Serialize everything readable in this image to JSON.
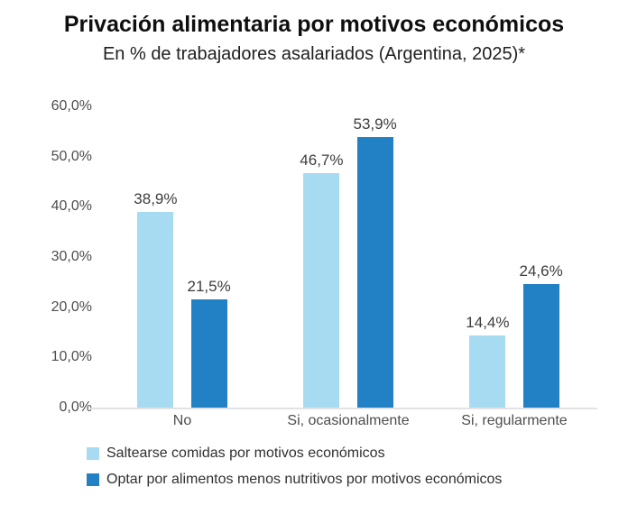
{
  "title": "Privación alimentaria por motivos económicos",
  "subtitle": "En % de trabajadores asalariados (Argentina, 2025)*",
  "colors": {
    "series_light": "#A7DBF2",
    "series_dark": "#2280C4",
    "baseline": "#e3e3e3",
    "title_text": "#0f0f0f",
    "axis_text": "#4d4d4d",
    "value_text": "#3d3d3d"
  },
  "chart_data": {
    "type": "bar",
    "categories": [
      "No",
      "Si, ocasionalmente",
      "Si, regularmente"
    ],
    "series": [
      {
        "name": "Saltearse comidas por motivos económicos",
        "color": "#A7DBF2",
        "values": [
          38.9,
          46.7,
          14.4
        ],
        "labels": [
          "38,9%",
          "46,7%",
          "14,4%"
        ]
      },
      {
        "name": "Optar por alimentos menos nutritivos por motivos económicos",
        "color": "#2280C4",
        "values": [
          21.5,
          53.9,
          24.6
        ],
        "labels": [
          "21,5%",
          "53,9%",
          "24,6%"
        ]
      }
    ],
    "title": "Privación alimentaria por motivos económicos",
    "subtitle": "En % de trabajadores asalariados (Argentina, 2025)*",
    "xlabel": "",
    "ylabel": "",
    "ylim": [
      0,
      60
    ],
    "y_ticks": [
      {
        "value": 60,
        "label": "60,0%"
      },
      {
        "value": 50,
        "label": "50,0%"
      },
      {
        "value": 40,
        "label": "40,0%"
      },
      {
        "value": 30,
        "label": "30,0%"
      },
      {
        "value": 20,
        "label": "20,0%"
      },
      {
        "value": 10,
        "label": "10,0%"
      },
      {
        "value": 0,
        "label": "0,0%"
      }
    ],
    "grid": false,
    "legend_position": "bottom-left",
    "value_labels_shown": true
  }
}
